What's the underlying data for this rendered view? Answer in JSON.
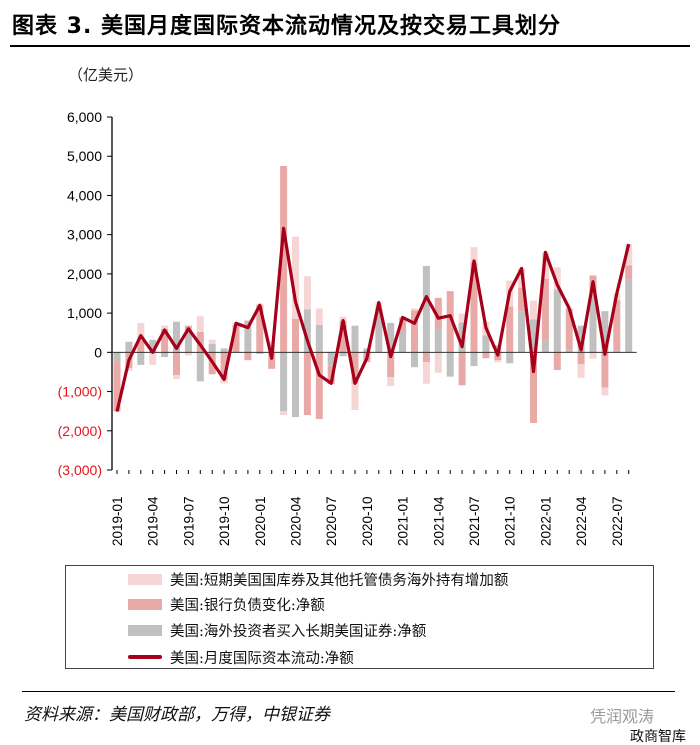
{
  "title": "图表 3. 美国月度国际资本流动情况及按交易工具划分",
  "chart_data": {
    "type": "bar+line",
    "unit_label": "（亿美元）",
    "ylim": [
      -3000,
      6000
    ],
    "yticks": [
      6000,
      5000,
      4000,
      3000,
      2000,
      1000,
      0,
      -1000,
      -2000,
      -3000
    ],
    "ytick_labels": [
      "6,000",
      "5,000",
      "4,000",
      "3,000",
      "2,000",
      "1,000",
      "0",
      "(1,000)",
      "(2,000)",
      "(3,000)"
    ],
    "negative_tick_color": "#e8141c",
    "x": [
      "2019-01",
      "2019-02",
      "2019-03",
      "2019-04",
      "2019-05",
      "2019-06",
      "2019-07",
      "2019-08",
      "2019-09",
      "2019-10",
      "2019-11",
      "2019-12",
      "2020-01",
      "2020-02",
      "2020-03",
      "2020-04",
      "2020-05",
      "2020-06",
      "2020-07",
      "2020-08",
      "2020-09",
      "2020-10",
      "2020-11",
      "2020-12",
      "2021-01",
      "2021-02",
      "2021-03",
      "2021-04",
      "2021-05",
      "2021-06",
      "2021-07",
      "2021-08",
      "2021-09",
      "2021-10",
      "2021-11",
      "2021-12",
      "2022-01",
      "2022-02",
      "2022-03",
      "2022-04",
      "2022-05",
      "2022-06",
      "2022-07",
      "2022-08"
    ],
    "xtick_labels": [
      "2019-01",
      "2019-04",
      "2019-07",
      "2019-10",
      "2020-01",
      "2020-04",
      "2020-07",
      "2020-10",
      "2021-01",
      "2021-04",
      "2021-07",
      "2021-10",
      "2022-01",
      "2022-04",
      "2022-07"
    ],
    "series": [
      {
        "name": "美国:海外投资者买入长期美国证券:净额",
        "type": "bar",
        "color": "#c0c0c0",
        "values": [
          -250,
          270,
          -320,
          320,
          -120,
          780,
          520,
          -740,
          220,
          100,
          0,
          800,
          -40,
          0,
          -1500,
          -1650,
          1100,
          700,
          -330,
          -100,
          680,
          100,
          1000,
          750,
          530,
          -380,
          2200,
          600,
          -620,
          760,
          -350,
          430,
          180,
          -280,
          1050,
          840,
          320,
          1600,
          80,
          680,
          1400,
          1050,
          50,
          1860
        ]
      },
      {
        "name": "美国:银行负债变化:净额",
        "type": "bar",
        "color": "#e8a9a7",
        "values": [
          -1250,
          -400,
          300,
          0,
          600,
          -580,
          160,
          520,
          -560,
          -700,
          700,
          -200,
          1200,
          -420,
          4750,
          850,
          -1600,
          -1700,
          -480,
          800,
          -800,
          -250,
          100,
          -630,
          360,
          1070,
          -250,
          790,
          1560,
          -840,
          2300,
          -150,
          -200,
          1170,
          600,
          -1800,
          1550,
          -450,
          1040,
          -300,
          560,
          -900,
          1280,
          360
        ]
      },
      {
        "name": "美国:短期美国国库券及其他托管债务海外持有增加额",
        "type": "bar",
        "color": "#f6d6d5",
        "values": [
          0,
          -70,
          450,
          -320,
          80,
          -100,
          -80,
          400,
          100,
          -90,
          40,
          30,
          40,
          270,
          -100,
          2100,
          840,
          420,
          20,
          110,
          -670,
          0,
          170,
          -230,
          0,
          50,
          -550,
          -520,
          0,
          230,
          380,
          350,
          -50,
          660,
          490,
          480,
          680,
          570,
          0,
          -350,
          -160,
          -200,
          170,
          540
        ]
      },
      {
        "name": "美国:月度国际资本流动:净额",
        "type": "line",
        "color": "#a6001a",
        "values": [
          -1510,
          -200,
          425,
          0,
          570,
          100,
          600,
          190,
          -240,
          -690,
          740,
          630,
          1200,
          -150,
          3160,
          1290,
          300,
          -580,
          -790,
          810,
          -790,
          -150,
          1270,
          -110,
          890,
          740,
          1420,
          870,
          935,
          145,
          2330,
          630,
          -70,
          1550,
          2140,
          -490,
          2550,
          1720,
          1120,
          60,
          1800,
          -50,
          1500,
          2760
        ]
      }
    ],
    "legend_position": "bottom",
    "grid": false
  },
  "legend": {
    "items": [
      {
        "label": "美国:短期美国国库券及其他托管债务海外持有增加额",
        "color": "#f6d6d5"
      },
      {
        "label": "美国:银行负债变化:净额",
        "color": "#e8a9a7"
      },
      {
        "label": "美国:海外投资者买入长期美国证券:净额",
        "color": "#c0c0c0"
      },
      {
        "label": "美国:月度国际资本流动:净额",
        "color": "#a6001a"
      }
    ]
  },
  "source": "资料来源：美国财政部，万得，中银证券",
  "watermark": "凭润观涛",
  "watermark2": "政商智库"
}
